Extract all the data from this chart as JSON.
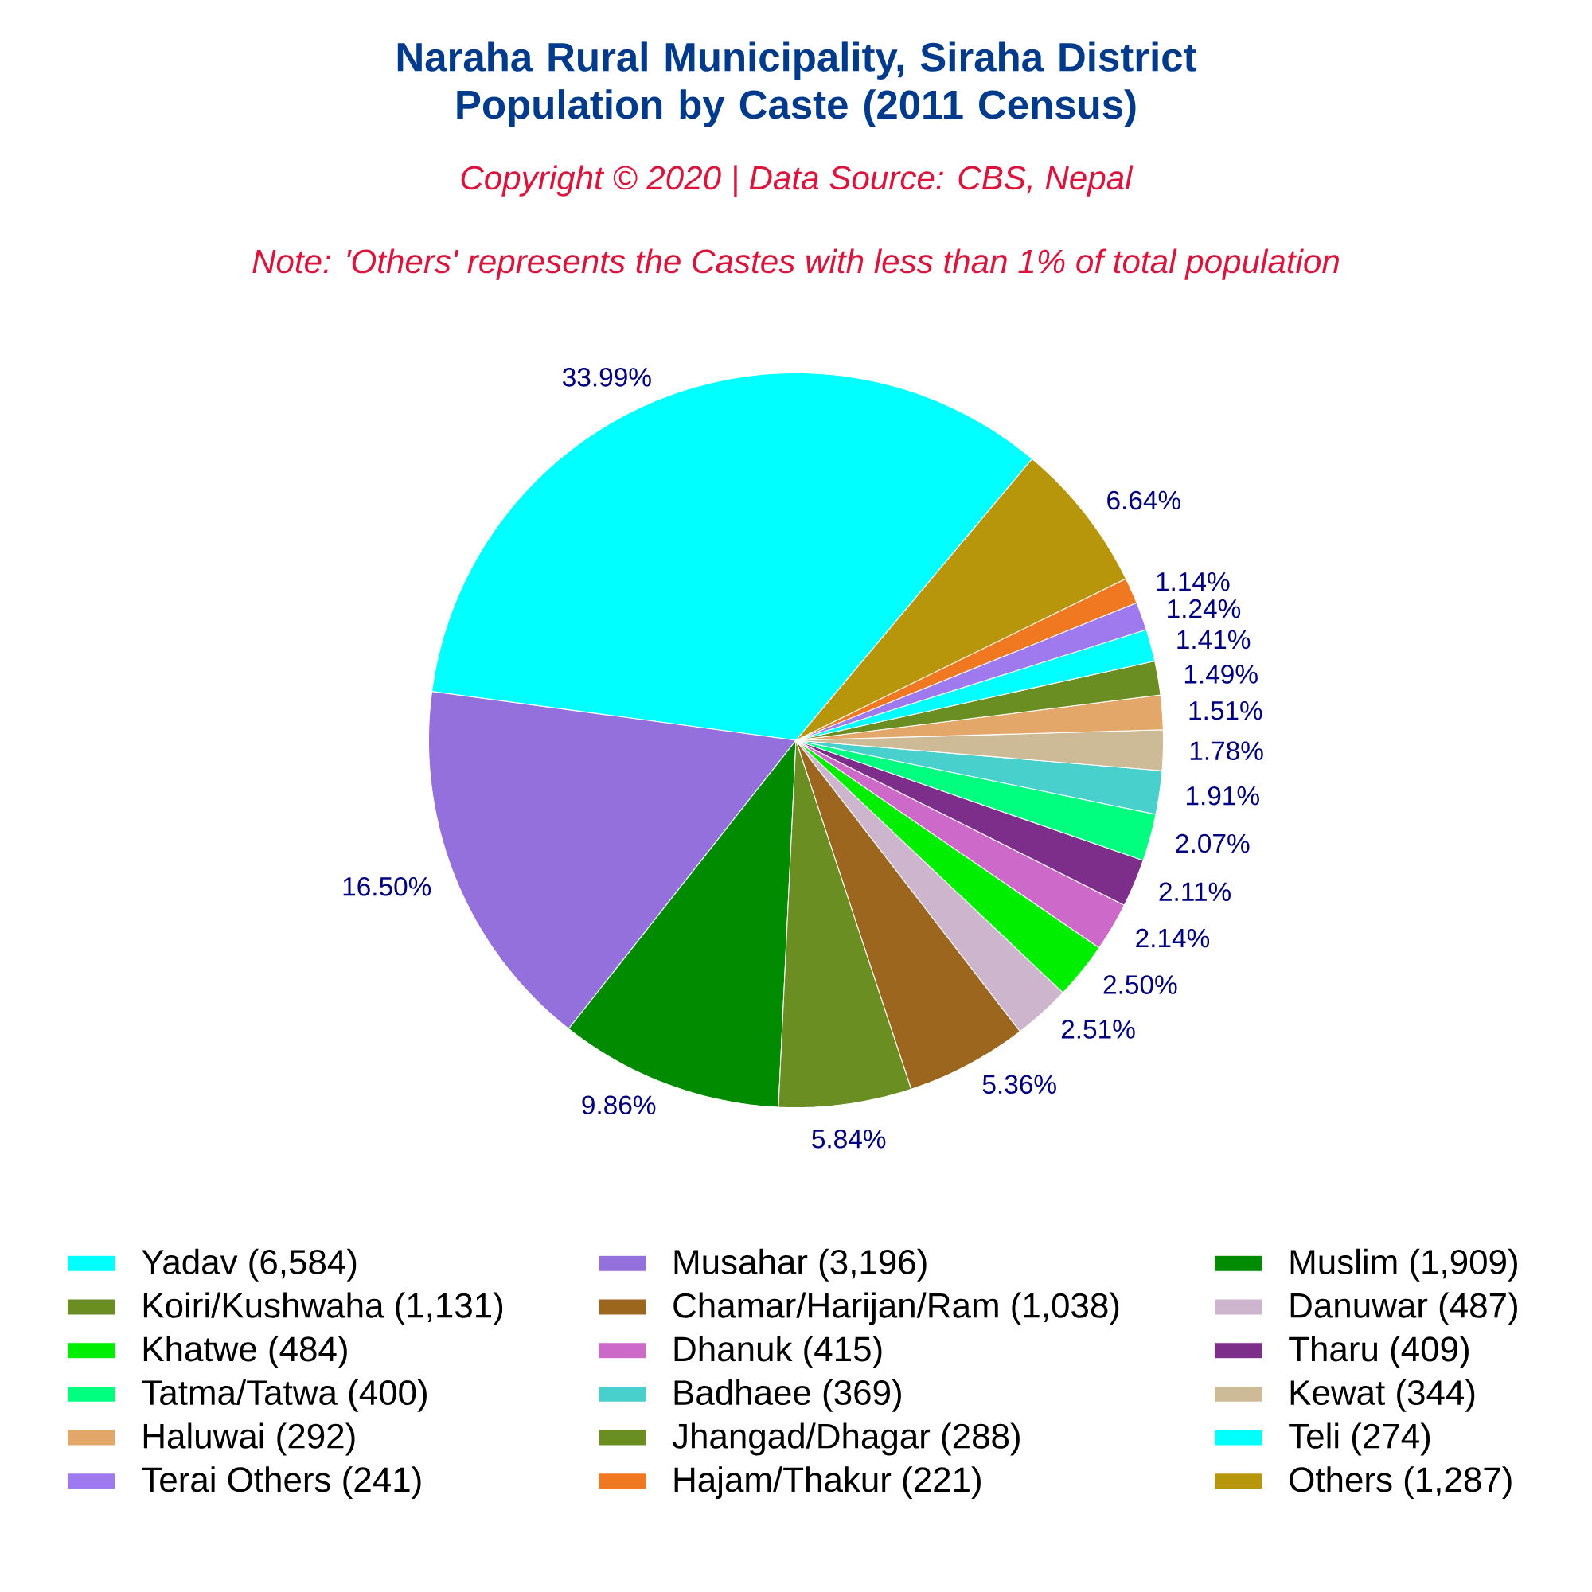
{
  "chart_data": {
    "type": "pie",
    "title": "Naraha Rural Municipality, Siraha District Population by Caste (2011 Census)",
    "subtitle": "Copyright © 2020 | Data Source: CBS, Nepal",
    "annotations": [
      "Note: 'Others' represents the Castes with less than 1% of total population"
    ],
    "categories": [
      "Yadav (6,584)",
      "Musahar (3,196)",
      "Muslim (1,909)",
      "Koiri/Kushwaha (1,131)",
      "Chamar/Harijan/Ram (1,038)",
      "Danuwar (487)",
      "Khatwe (484)",
      "Dhanuk (415)",
      "Tharu (409)",
      "Tatma/Tatwa (400)",
      "Badhaee (369)",
      "Kewat (344)",
      "Haluwai (292)",
      "Jhangad/Dhagar (288)",
      "Teli (274)",
      "Terai Others (241)",
      "Hajam/Thakur (221)",
      "Others (1,287)"
    ],
    "values": [
      33.99,
      16.5,
      9.86,
      5.84,
      5.36,
      2.51,
      2.5,
      2.14,
      2.11,
      2.07,
      1.91,
      1.78,
      1.51,
      1.49,
      1.41,
      1.24,
      1.14,
      6.64
    ],
    "value_labels": [
      "33.99%",
      "16.50%",
      "9.86%",
      "5.84%",
      "5.36%",
      "2.51%",
      "2.50%",
      "2.14%",
      "2.11%",
      "2.07%",
      "1.91%",
      "1.78%",
      "1.51%",
      "1.49%",
      "1.41%",
      "1.24%",
      "1.14%",
      "6.64%"
    ],
    "colors": [
      "#00ffff",
      "#9370db",
      "#008b00",
      "#6b8e23",
      "#9c661f",
      "#cdb5cd",
      "#00ee00",
      "#cd69c9",
      "#7d2e8a",
      "#00ff7f",
      "#48d1cc",
      "#cdba96",
      "#e3a869",
      "#6b8e23",
      "#00ffff",
      "#9f79ee",
      "#f07820",
      "#b8960c"
    ],
    "legend": "bottom"
  }
}
